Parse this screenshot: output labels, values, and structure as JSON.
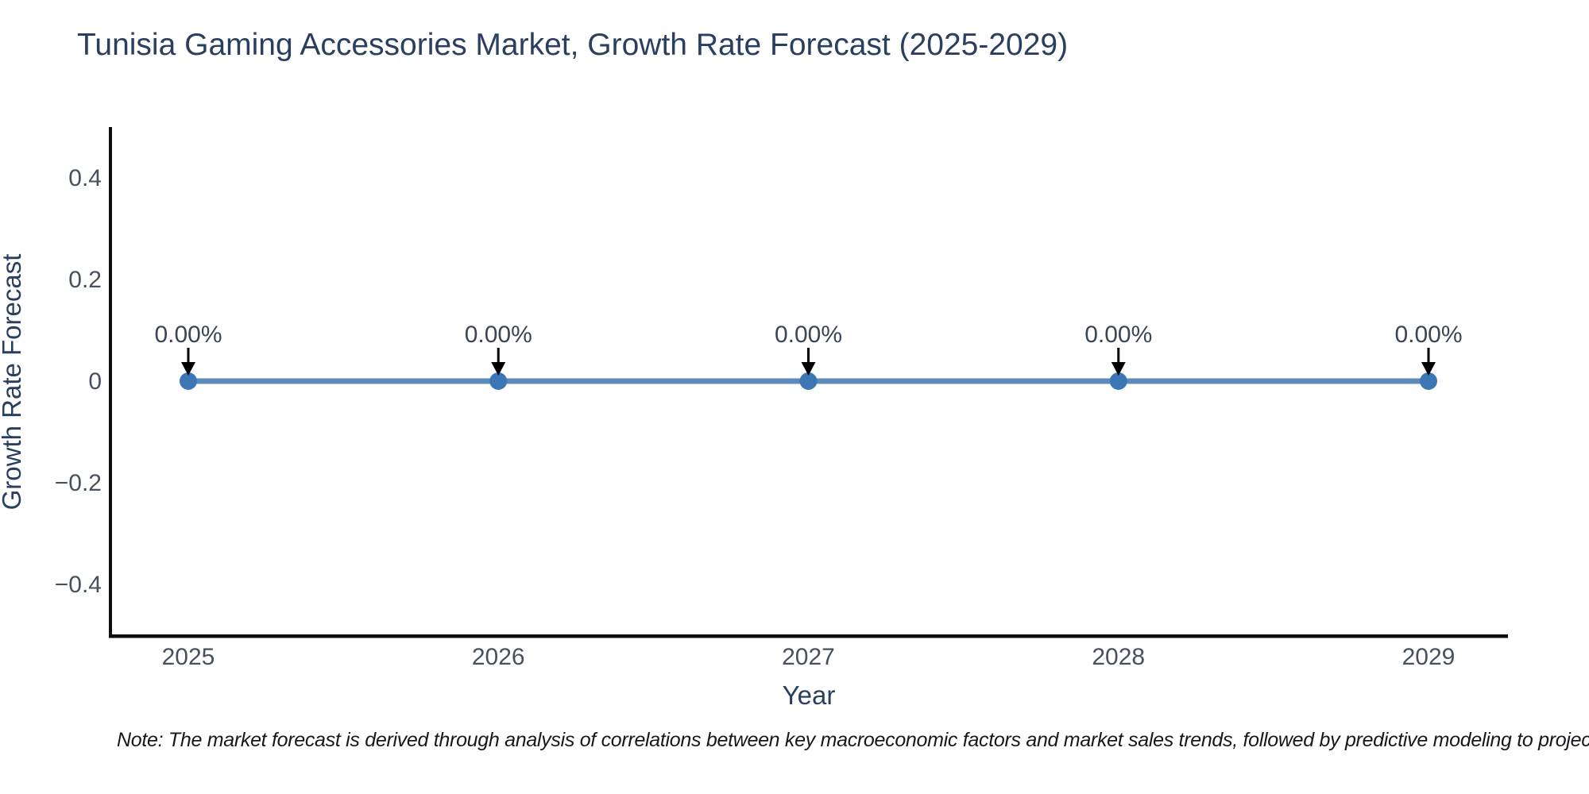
{
  "chart": {
    "title": "Tunisia Gaming Accessories Market, Growth Rate Forecast (2025-2029)"
  },
  "chart_data": {
    "type": "line",
    "x": [
      2025,
      2026,
      2027,
      2028,
      2029
    ],
    "values": [
      0,
      0,
      0,
      0,
      0
    ],
    "point_labels": [
      "0.00%",
      "0.00%",
      "0.00%",
      "0.00%",
      "0.00%"
    ],
    "title": "Tunisia Gaming Accessories Market, Growth Rate Forecast (2025-2029)",
    "xlabel": "Year",
    "ylabel": "Growth Rate Forecast",
    "xtick_labels": [
      "2025",
      "2026",
      "2027",
      "2028",
      "2029"
    ],
    "yticks": [
      0.4,
      0.2,
      0,
      -0.2,
      -0.4
    ],
    "ytick_labels": [
      "0.4",
      "0.2",
      "0",
      "−0.2",
      "−0.4"
    ],
    "ylim": [
      -0.51,
      0.51
    ],
    "grid": false,
    "legend": false,
    "line_color": "#5b8cba",
    "marker_color": "#3c76b5",
    "arrow_color": "#000000"
  },
  "note": {
    "text": "Note: The market forecast is derived through analysis of correlations between key macroeconomic factors and market sales trends, followed by predictive modeling to project future sales"
  },
  "colors": {
    "title": "#2a3f5f",
    "axis_label": "#2a3f5f",
    "tick": "#47505e",
    "annotation": "#3a4556",
    "spine": "#0d0d0d",
    "note": "#16181d",
    "background": "#ffffff"
  }
}
